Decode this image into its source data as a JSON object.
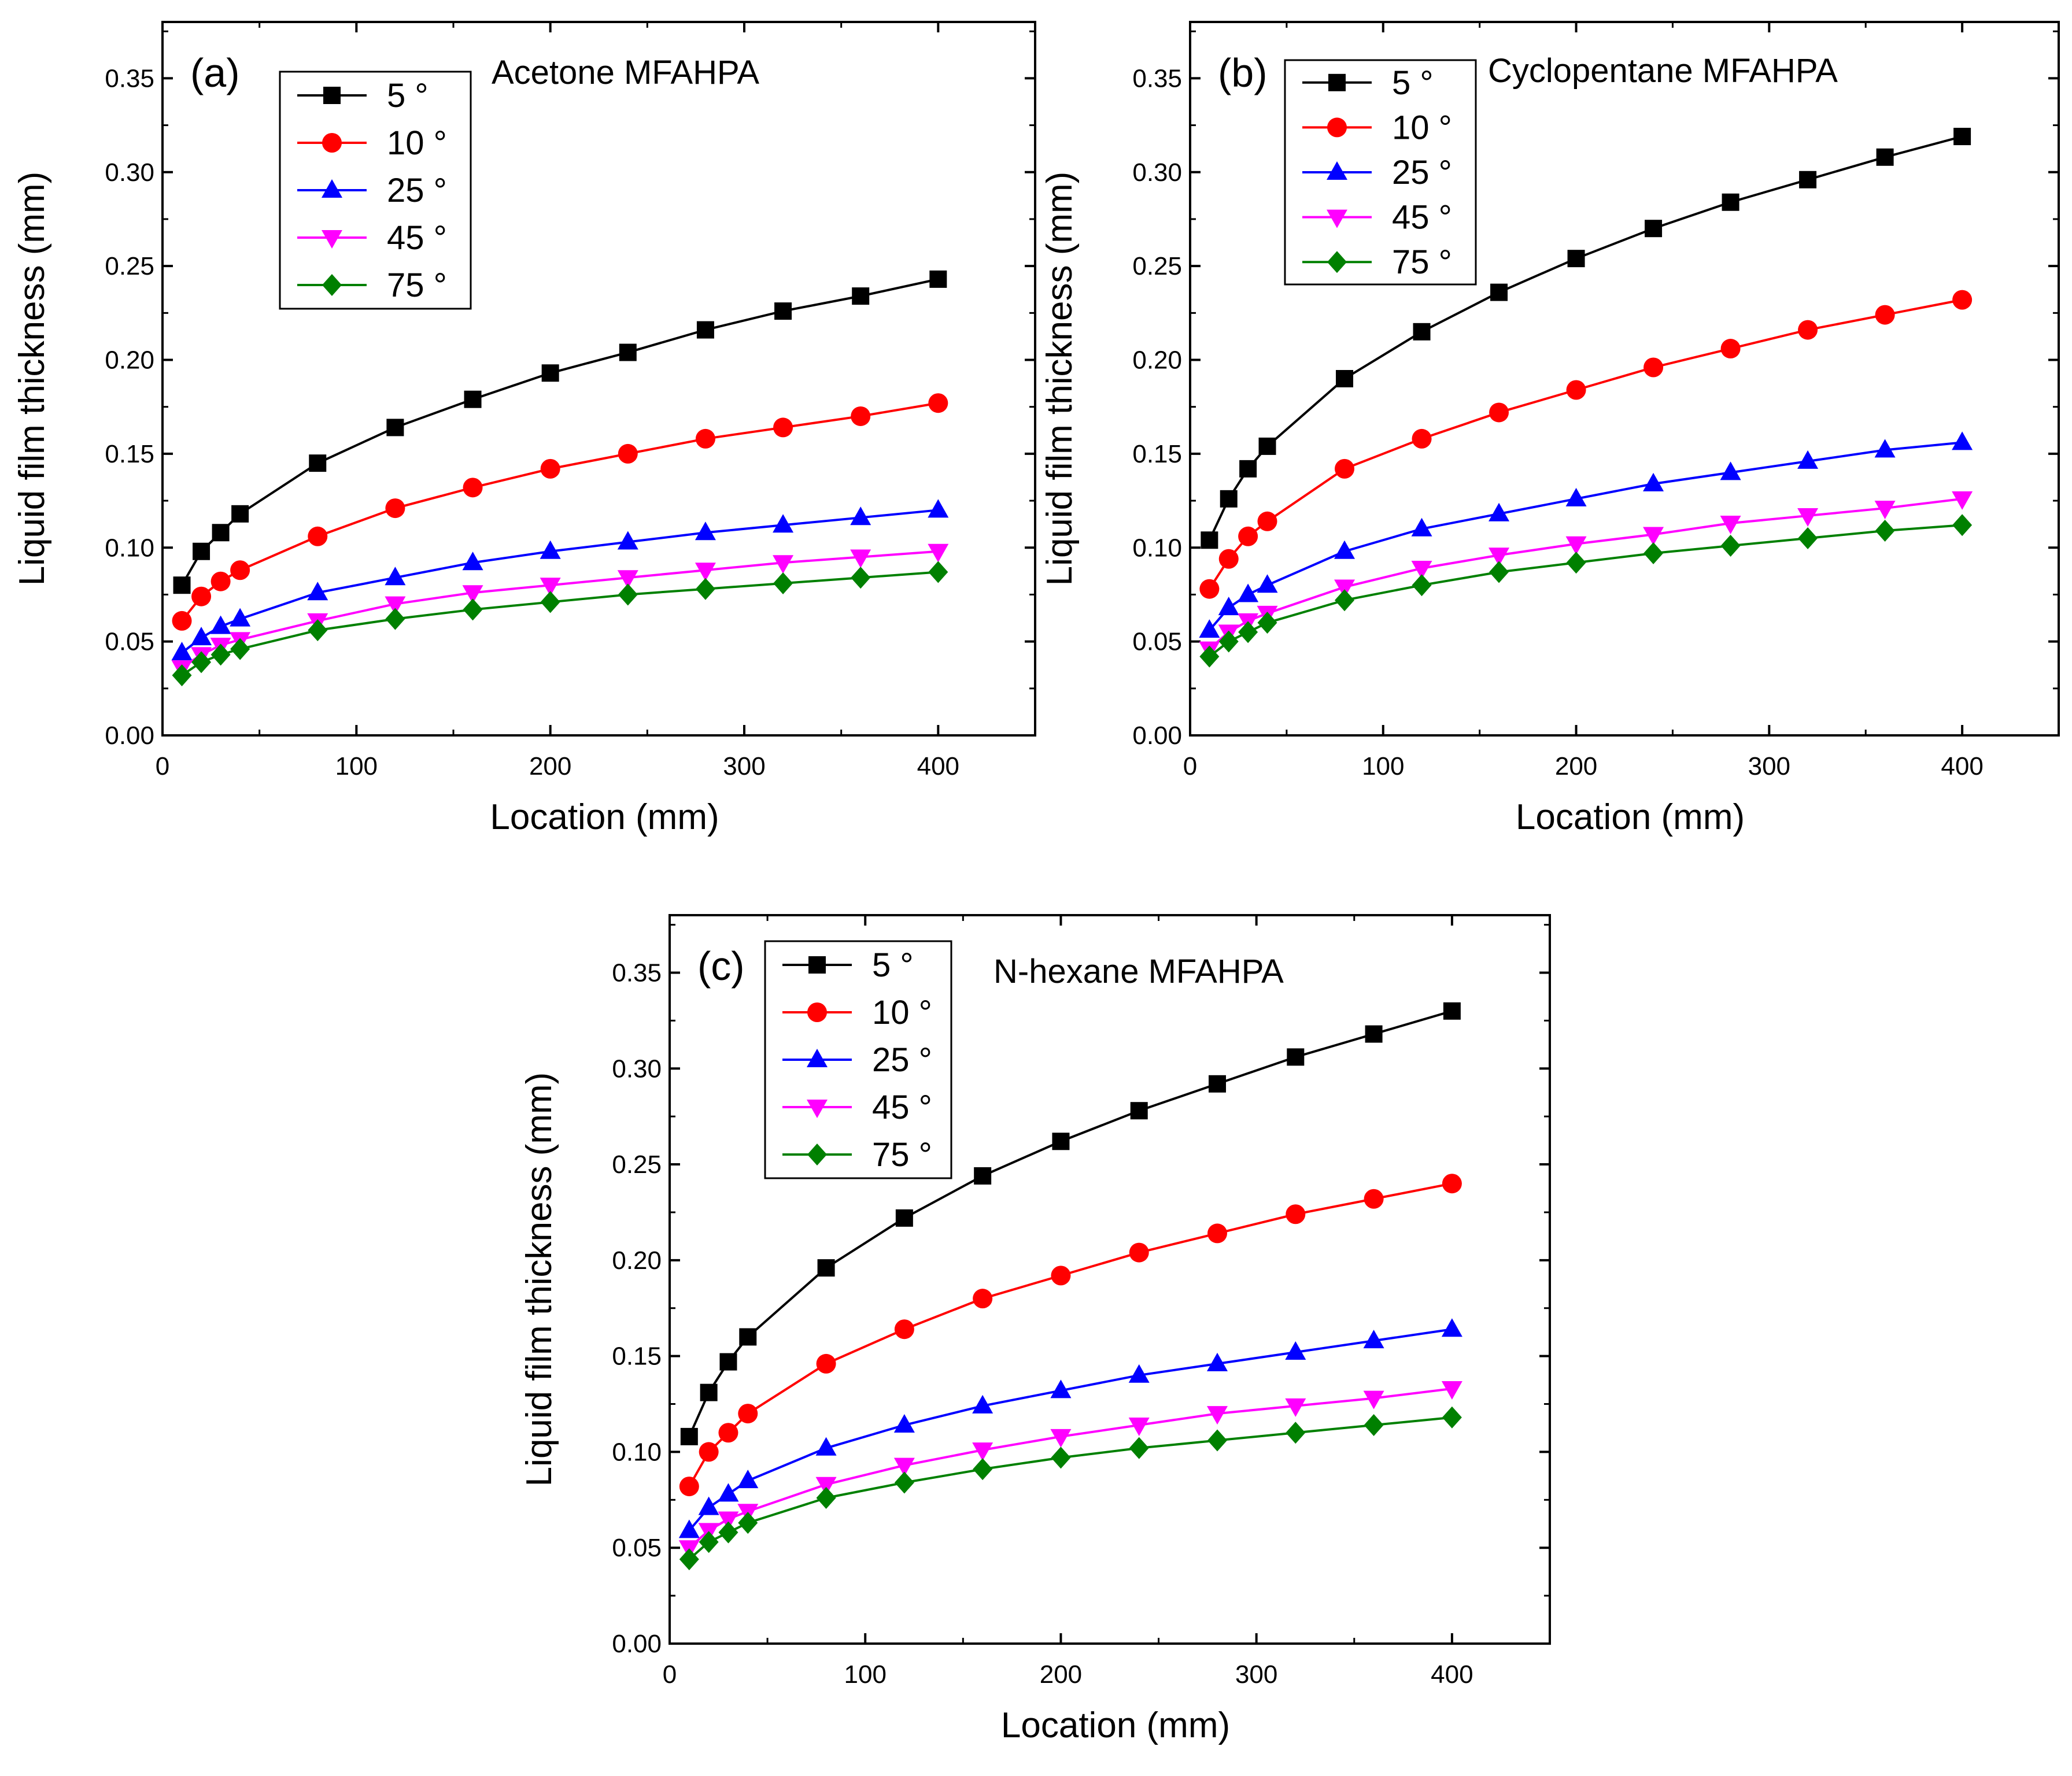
{
  "chart_data": [
    {
      "type": "line",
      "panel": "(a)",
      "title": "Acetone MFAHPA",
      "xlabel": "Location (mm)",
      "ylabel": "Liquid film thickness (mm)",
      "xlim": [
        0,
        450
      ],
      "ylim": [
        0,
        0.38
      ],
      "xticks": [
        0,
        100,
        200,
        300,
        400
      ],
      "yticks": [
        0.0,
        0.05,
        0.1,
        0.15,
        0.2,
        0.25,
        0.3,
        0.35
      ],
      "x": [
        10,
        20,
        30,
        40,
        80,
        120,
        160,
        200,
        240,
        280,
        320,
        360,
        400
      ],
      "legend_position": "top-left",
      "series": [
        {
          "name": "5 °",
          "color": "#000000",
          "marker": "square",
          "values": [
            0.08,
            0.098,
            0.108,
            0.118,
            0.145,
            0.164,
            0.179,
            0.193,
            0.204,
            0.216,
            0.226,
            0.234,
            0.243
          ]
        },
        {
          "name": "10 °",
          "color": "#ff0000",
          "marker": "circle",
          "values": [
            0.061,
            0.074,
            0.082,
            0.088,
            0.106,
            0.121,
            0.132,
            0.142,
            0.15,
            0.158,
            0.164,
            0.17,
            0.177
          ]
        },
        {
          "name": "25 °",
          "color": "#0000ff",
          "marker": "triangle-up",
          "values": [
            0.044,
            0.052,
            0.058,
            0.062,
            0.076,
            0.084,
            0.092,
            0.098,
            0.103,
            0.108,
            0.112,
            0.116,
            0.12
          ]
        },
        {
          "name": "45 °",
          "color": "#ff00ff",
          "marker": "triangle-down",
          "values": [
            0.036,
            0.043,
            0.048,
            0.051,
            0.061,
            0.07,
            0.076,
            0.08,
            0.084,
            0.088,
            0.092,
            0.095,
            0.098
          ]
        },
        {
          "name": "75 °",
          "color": "#008000",
          "marker": "diamond",
          "values": [
            0.032,
            0.039,
            0.043,
            0.046,
            0.056,
            0.062,
            0.067,
            0.071,
            0.075,
            0.078,
            0.081,
            0.084,
            0.087
          ]
        }
      ]
    },
    {
      "type": "line",
      "panel": "(b)",
      "title": "Cyclopentane MFAHPA",
      "xlabel": "Location (mm)",
      "ylabel": "Liquid film thickness (mm)",
      "xlim": [
        0,
        450
      ],
      "ylim": [
        0,
        0.38
      ],
      "xticks": [
        0,
        100,
        200,
        300,
        400
      ],
      "yticks": [
        0.0,
        0.05,
        0.1,
        0.15,
        0.2,
        0.25,
        0.3,
        0.35
      ],
      "x": [
        10,
        20,
        30,
        40,
        80,
        120,
        160,
        200,
        240,
        280,
        320,
        360,
        400
      ],
      "legend_position": "top-left",
      "series": [
        {
          "name": "5 °",
          "color": "#000000",
          "marker": "square",
          "values": [
            0.104,
            0.126,
            0.142,
            0.154,
            0.19,
            0.215,
            0.236,
            0.254,
            0.27,
            0.284,
            0.296,
            0.308,
            0.319
          ]
        },
        {
          "name": "10 °",
          "color": "#ff0000",
          "marker": "circle",
          "values": [
            0.078,
            0.094,
            0.106,
            0.114,
            0.142,
            0.158,
            0.172,
            0.184,
            0.196,
            0.206,
            0.216,
            0.224,
            0.232
          ]
        },
        {
          "name": "25 °",
          "color": "#0000ff",
          "marker": "triangle-up",
          "values": [
            0.056,
            0.068,
            0.075,
            0.08,
            0.098,
            0.11,
            0.118,
            0.126,
            0.134,
            0.14,
            0.146,
            0.152,
            0.156
          ]
        },
        {
          "name": "45 °",
          "color": "#ff00ff",
          "marker": "triangle-down",
          "values": [
            0.046,
            0.055,
            0.061,
            0.065,
            0.079,
            0.089,
            0.096,
            0.102,
            0.107,
            0.113,
            0.117,
            0.121,
            0.126
          ]
        },
        {
          "name": "75 °",
          "color": "#008000",
          "marker": "diamond",
          "values": [
            0.042,
            0.05,
            0.055,
            0.06,
            0.072,
            0.08,
            0.087,
            0.092,
            0.097,
            0.101,
            0.105,
            0.109,
            0.112
          ]
        }
      ]
    },
    {
      "type": "line",
      "panel": "(c)",
      "title": "N-hexane MFAHPA",
      "xlabel": "Location (mm)",
      "ylabel": "Liquid film thickness (mm)",
      "xlim": [
        0,
        450
      ],
      "ylim": [
        0,
        0.38
      ],
      "xticks": [
        0,
        100,
        200,
        300,
        400
      ],
      "yticks": [
        0.0,
        0.05,
        0.1,
        0.15,
        0.2,
        0.25,
        0.3,
        0.35
      ],
      "x": [
        10,
        20,
        30,
        40,
        80,
        120,
        160,
        200,
        240,
        280,
        320,
        360,
        400
      ],
      "legend_position": "top-left",
      "series": [
        {
          "name": "5 °",
          "color": "#000000",
          "marker": "square",
          "values": [
            0.108,
            0.131,
            0.147,
            0.16,
            0.196,
            0.222,
            0.244,
            0.262,
            0.278,
            0.292,
            0.306,
            0.318,
            0.33
          ]
        },
        {
          "name": "10 °",
          "color": "#ff0000",
          "marker": "circle",
          "values": [
            0.082,
            0.1,
            0.11,
            0.12,
            0.146,
            0.164,
            0.18,
            0.192,
            0.204,
            0.214,
            0.224,
            0.232,
            0.24
          ]
        },
        {
          "name": "25 °",
          "color": "#0000ff",
          "marker": "triangle-up",
          "values": [
            0.059,
            0.071,
            0.078,
            0.085,
            0.102,
            0.114,
            0.124,
            0.132,
            0.14,
            0.146,
            0.152,
            0.158,
            0.164
          ]
        },
        {
          "name": "45 °",
          "color": "#ff00ff",
          "marker": "triangle-down",
          "values": [
            0.05,
            0.059,
            0.065,
            0.069,
            0.083,
            0.093,
            0.101,
            0.108,
            0.114,
            0.12,
            0.124,
            0.128,
            0.133
          ]
        },
        {
          "name": "75 °",
          "color": "#008000",
          "marker": "diamond",
          "values": [
            0.044,
            0.053,
            0.058,
            0.063,
            0.076,
            0.084,
            0.091,
            0.097,
            0.102,
            0.106,
            0.11,
            0.114,
            0.118
          ]
        }
      ]
    }
  ]
}
